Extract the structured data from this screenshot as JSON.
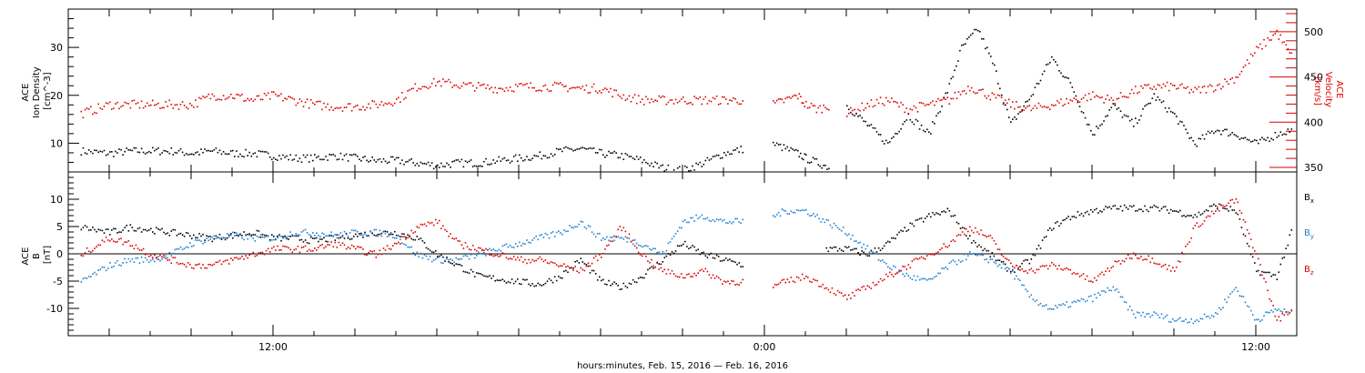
{
  "chart_data": [
    {
      "type": "scatter",
      "panel": "top",
      "x_unit": "hours since 2016-02-15 00:00",
      "xlim": [
        7,
        37
      ],
      "left_axis": {
        "ylabel_lines": [
          "ACE",
          "Ion Density",
          "[cm^-3]"
        ],
        "ylim": [
          4,
          38
        ],
        "ticks": [
          10,
          20,
          30
        ],
        "color": "#000000"
      },
      "right_axis": {
        "ylabel_lines": [
          "ACE",
          "Velocity",
          "[km/s]"
        ],
        "ylim": [
          345,
          525
        ],
        "ticks": [
          350,
          400,
          450,
          500
        ],
        "color": "#dd0000"
      },
      "series": [
        {
          "color": "#000000",
          "axis": "left",
          "segments": [
            {
              "x": [
                7.3,
                8.0,
                8.5,
                9.0,
                9.5,
                10.0,
                10.5,
                11.0,
                11.5,
                12.0,
                12.5,
                13.0,
                13.5,
                14.0,
                14.5,
                15.0,
                15.5,
                16.0,
                16.5,
                17.0,
                17.5,
                18.0,
                18.5,
                19.0,
                19.5,
                20.0,
                20.5,
                21.0,
                21.5,
                22.0,
                22.5,
                23.0,
                23.5
              ],
              "y": [
                8.5,
                8,
                8.5,
                8.5,
                8.5,
                8,
                8.5,
                8,
                8,
                7.5,
                7,
                7,
                7.5,
                7,
                6.5,
                6.5,
                6,
                5.5,
                6,
                6,
                6.5,
                7,
                7.5,
                8.5,
                9,
                8,
                7.5,
                6.5,
                5,
                4.5,
                6,
                8,
                9
              ]
            },
            {
              "x": [
                24.2,
                24.5,
                24.8,
                25.0,
                25.3,
                25.6
              ],
              "y": [
                10,
                9,
                8,
                7,
                6,
                5
              ]
            },
            {
              "x": [
                26.0,
                26.5,
                27.0,
                27.5,
                28.0,
                28.5,
                28.8,
                29.2,
                29.6,
                30.0,
                30.5,
                31.0,
                31.5,
                32.0,
                32.5,
                33.0,
                33.5,
                34.0,
                34.5,
                35.0,
                35.5,
                36.0,
                36.5,
                36.9
              ],
              "y": [
                18,
                14,
                10,
                16,
                12,
                22,
                30,
                34,
                26,
                14,
                20,
                28,
                22,
                12,
                18,
                14,
                20,
                16,
                10,
                13,
                12,
                10,
                12,
                13
              ]
            }
          ]
        },
        {
          "color": "#dd0000",
          "axis": "right",
          "segments": [
            {
              "x": [
                7.3,
                8.0,
                8.5,
                9.0,
                9.5,
                10.0,
                10.5,
                11.0,
                11.5,
                12.0,
                12.5,
                13.0,
                13.5,
                14.0,
                14.5,
                15.0,
                15.5,
                16.0,
                16.5,
                17.0,
                17.5,
                18.0,
                18.5,
                19.0,
                19.5,
                20.0,
                20.5,
                21.0,
                21.5,
                22.0,
                22.5,
                23.0,
                23.5
              ],
              "y": [
                410,
                420,
                420,
                420,
                420,
                420,
                430,
                430,
                425,
                430,
                425,
                420,
                418,
                418,
                420,
                425,
                440,
                445,
                442,
                440,
                438,
                440,
                440,
                440,
                438,
                438,
                430,
                425,
                425,
                425,
                425,
                425,
                425
              ]
            },
            {
              "x": [
                24.2,
                24.5,
                24.8,
                25.0,
                25.3,
                25.6
              ],
              "y": [
                420,
                425,
                430,
                420,
                415,
                420
              ]
            },
            {
              "x": [
                26.0,
                26.5,
                27.0,
                27.5,
                28.0,
                28.5,
                29.0,
                29.5,
                30.0,
                30.5,
                31.0,
                31.5,
                32.0,
                32.5,
                33.0,
                33.5,
                34.0,
                34.5,
                35.0,
                35.5,
                36.0,
                36.5,
                36.9
              ],
              "y": [
                410,
                420,
                425,
                415,
                420,
                425,
                440,
                430,
                420,
                415,
                420,
                425,
                430,
                425,
                435,
                440,
                440,
                435,
                440,
                450,
                480,
                500,
                470
              ]
            }
          ]
        }
      ]
    },
    {
      "type": "scatter",
      "panel": "bottom",
      "x_unit": "hours since 2016-02-15 00:00",
      "xlim": [
        7,
        37
      ],
      "ylabel_lines": [
        "ACE",
        "B",
        "[nT]"
      ],
      "ylim": [
        -15,
        15
      ],
      "ticks": [
        -10,
        -5,
        0,
        5,
        10
      ],
      "xtick_labels": [
        "12:00",
        "0:00",
        "12:00"
      ],
      "xtick_hours": [
        12,
        24,
        36
      ],
      "xlabel": "hours:minutes, Feb. 15, 2016 — Feb. 16, 2016",
      "series": [
        {
          "name": "Bx",
          "color": "#000000",
          "segments": [
            {
              "x": [
                7.3,
                8.0,
                8.5,
                9.0,
                9.5,
                10.0,
                10.5,
                11.0,
                11.5,
                12.0,
                12.5,
                13.0,
                13.5,
                14.0,
                14.5,
                15.0,
                15.5,
                16.0,
                16.5,
                17.0,
                17.5,
                18.0,
                18.5,
                19.0,
                19.5,
                20.0,
                20.5,
                21.0,
                21.5,
                22.0,
                22.5,
                23.0,
                23.5
              ],
              "y": [
                5,
                4,
                5,
                4.5,
                4,
                3.5,
                3,
                3.5,
                4,
                3,
                3,
                2.5,
                3,
                3.5,
                4,
                4,
                3,
                0,
                -2,
                -4,
                -4.5,
                -5,
                -5.5,
                -4,
                -1,
                -5,
                -6,
                -4,
                -1,
                2,
                0,
                -1,
                -2
              ]
            },
            {
              "x": [
                25.5,
                26.0,
                26.5,
                27.0,
                27.5,
                28.0,
                28.5,
                29.0,
                29.5,
                30.0,
                30.5,
                31.0,
                31.5,
                32.0,
                32.5,
                33.0,
                33.5,
                34.0,
                34.5,
                35.0,
                35.5,
                36.0,
                36.5,
                36.9
              ],
              "y": [
                1,
                1,
                0,
                2,
                5,
                7,
                8,
                3,
                0,
                -3,
                -1,
                5,
                7,
                8,
                8.5,
                8.5,
                8.5,
                8,
                7,
                9,
                8,
                -3,
                -4,
                5
              ]
            }
          ]
        },
        {
          "name": "By",
          "color": "#1e7fd0",
          "segments": [
            {
              "x": [
                7.3,
                8.0,
                8.5,
                9.0,
                9.5,
                10.0,
                10.5,
                11.0,
                11.5,
                12.0,
                12.5,
                13.0,
                13.5,
                14.0,
                14.5,
                15.0,
                15.5,
                16.0,
                16.5,
                17.0,
                17.5,
                18.0,
                18.5,
                19.0,
                19.5,
                20.0,
                20.5,
                21.0,
                21.5,
                22.0,
                22.5,
                23.0,
                23.5
              ],
              "y": [
                -5,
                -2,
                -1,
                -1,
                0,
                2,
                3,
                3.5,
                3,
                3,
                4,
                4,
                3.5,
                4,
                4,
                3.5,
                0,
                -1,
                -1,
                0,
                1,
                2,
                3,
                4,
                6,
                3,
                3,
                2,
                0,
                6,
                7,
                6,
                6
              ]
            },
            {
              "x": [
                24.2,
                24.5,
                25.0,
                25.5,
                26.0,
                26.5,
                27.0,
                27.5,
                28.0,
                28.5,
                29.0,
                29.5,
                30.0,
                30.5,
                31.0,
                31.5,
                32.0,
                32.5,
                33.0,
                33.5,
                34.0,
                34.5,
                35.0,
                35.5,
                36.0,
                36.5,
                36.9
              ],
              "y": [
                7,
                8,
                8,
                6,
                4,
                1,
                -2,
                -4,
                -5,
                -2,
                0,
                -1,
                -3,
                -8,
                -10,
                -9,
                -8,
                -6,
                -11,
                -11,
                -12,
                -12,
                -11,
                -6,
                -12,
                -10,
                -11
              ]
            }
          ]
        },
        {
          "name": "Bz",
          "color": "#dd0000",
          "segments": [
            {
              "x": [
                7.3,
                8.0,
                8.5,
                9.0,
                9.5,
                10.0,
                10.5,
                11.0,
                11.5,
                12.0,
                12.5,
                13.0,
                13.5,
                14.0,
                14.5,
                15.0,
                15.5,
                16.0,
                16.5,
                17.0,
                17.5,
                18.0,
                18.5,
                19.0,
                19.5,
                20.0,
                20.5,
                21.0,
                21.5,
                22.0,
                22.5,
                23.0,
                23.5
              ],
              "y": [
                0,
                3,
                2,
                0,
                -1,
                -2,
                -2,
                -1,
                0,
                1,
                1,
                1,
                2,
                1,
                0,
                2,
                5,
                6,
                2,
                1,
                0,
                -1,
                -1,
                -2,
                -3,
                0,
                5,
                0,
                -3,
                -4,
                -3,
                -5,
                -5
              ]
            },
            {
              "x": [
                24.2,
                24.5,
                25.0,
                25.5,
                26.0,
                26.5,
                27.0,
                27.5,
                28.0,
                28.5,
                29.0,
                29.5,
                30.0,
                30.5,
                31.0,
                31.5,
                32.0,
                32.5,
                33.0,
                33.5,
                34.0,
                34.5,
                35.0,
                35.5,
                36.0,
                36.5,
                36.9
              ],
              "y": [
                -6,
                -5,
                -4,
                -6,
                -8,
                -6,
                -4,
                -2,
                0,
                2,
                5,
                3,
                -2,
                -3,
                -2,
                -3,
                -5,
                -2,
                0,
                -1,
                -3,
                5,
                8,
                10,
                0,
                -12,
                -10
              ]
            }
          ]
        }
      ],
      "legend": [
        {
          "text": "B",
          "sub": "x",
          "color": "#000000"
        },
        {
          "text": "B",
          "sub": "y",
          "color": "#1e7fd0"
        },
        {
          "text": "B",
          "sub": "z",
          "color": "#dd0000"
        }
      ],
      "legend_placement": "right"
    }
  ]
}
